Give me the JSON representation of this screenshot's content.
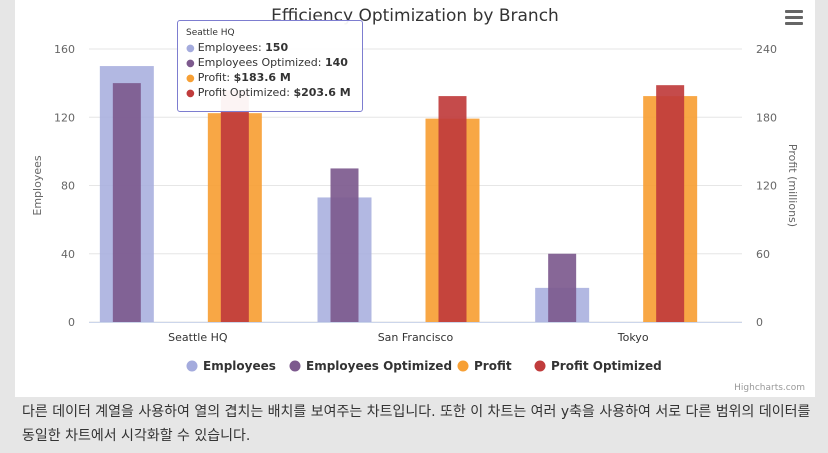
{
  "chart_data": {
    "type": "bar",
    "title": "Efficiency Optimization by Branch",
    "categories": [
      "Seattle HQ",
      "San Francisco",
      "Tokyo"
    ],
    "y_axis_left": {
      "title": "Employees",
      "min": 0,
      "max": 160,
      "ticks": [
        0,
        40,
        80,
        120,
        160
      ]
    },
    "y_axis_right": {
      "title": "Profit (millions)",
      "min": 0,
      "max": 240,
      "ticks": [
        0,
        60,
        120,
        180,
        240
      ]
    },
    "series": [
      {
        "name": "Employees",
        "color": "#a4abdd",
        "axis": "left",
        "values": [
          150,
          73,
          20
        ]
      },
      {
        "name": "Employees Optimized",
        "color": "#7d5a8e",
        "axis": "left",
        "values": [
          140,
          90,
          40
        ]
      },
      {
        "name": "Profit",
        "color": "#f7a035",
        "axis": "right",
        "values": [
          183.6,
          178.8,
          198.6
        ]
      },
      {
        "name": "Profit Optimized",
        "color": "#c03c3c",
        "axis": "right",
        "values": [
          203.6,
          198.6,
          208.2
        ]
      }
    ],
    "grid": true,
    "legend_position": "bottom-center"
  },
  "tooltip": {
    "header": "Seattle HQ",
    "rows": [
      {
        "label": "Employees:",
        "value": "150",
        "color": "#a4abdd"
      },
      {
        "label": "Employees Optimized:",
        "value": "140",
        "color": "#7d5a8e"
      },
      {
        "label": "Profit:",
        "value": "$183.6 M",
        "color": "#f7a035"
      },
      {
        "label": "Profit Optimized:",
        "value": "$203.6 M",
        "color": "#c03c3c"
      }
    ]
  },
  "credits": "Highcharts.com",
  "description": "다른 데이터 계열을 사용하여 열의 겹치는 배치를 보여주는 차트입니다. 또한 이 차트는 여러 y축을 사용하여 서로 다른 범위의 데이터를 동일한 차트에서 시각화할 수 있습니다."
}
